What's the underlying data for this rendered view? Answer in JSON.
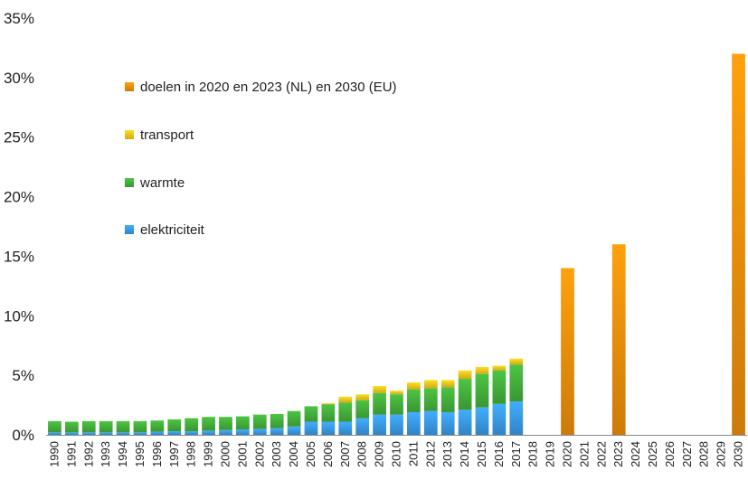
{
  "chart_data": {
    "type": "bar",
    "stacked": true,
    "title": "",
    "xlabel": "",
    "ylabel": "",
    "ylim": [
      0,
      35
    ],
    "yticks": [
      "0%",
      "5%",
      "10%",
      "15%",
      "20%",
      "25%",
      "30%",
      "35%"
    ],
    "grid": false,
    "legend_position": "top-left",
    "categories": [
      "1990",
      "1991",
      "1992",
      "1993",
      "1994",
      "1995",
      "1996",
      "1997",
      "1998",
      "1999",
      "2000",
      "2001",
      "2002",
      "2003",
      "2004",
      "2005",
      "2006",
      "2007",
      "2008",
      "2009",
      "2010",
      "2011",
      "2012",
      "2013",
      "2014",
      "2015",
      "2016",
      "2017",
      "2018",
      "2019",
      "2020",
      "2021",
      "2022",
      "2023",
      "2024",
      "2025",
      "2026",
      "2027",
      "2028",
      "2029",
      "2030"
    ],
    "series": [
      {
        "name": "elektriciteit",
        "color": "#3a9be6",
        "values": [
          0.2,
          0.2,
          0.2,
          0.2,
          0.2,
          0.2,
          0.25,
          0.3,
          0.3,
          0.35,
          0.4,
          0.45,
          0.5,
          0.55,
          0.7,
          1.1,
          1.1,
          1.1,
          1.4,
          1.7,
          1.7,
          1.9,
          2.0,
          1.9,
          2.1,
          2.3,
          2.6,
          2.8,
          0,
          0,
          0,
          0,
          0,
          0,
          0,
          0,
          0,
          0,
          0,
          0,
          0
        ]
      },
      {
        "name": "warmte",
        "color": "#44b03c",
        "values": [
          0.95,
          0.9,
          0.95,
          0.95,
          0.95,
          0.95,
          0.95,
          1.0,
          1.1,
          1.15,
          1.1,
          1.1,
          1.2,
          1.2,
          1.3,
          1.3,
          1.45,
          1.6,
          1.5,
          1.8,
          1.7,
          1.9,
          1.9,
          2.1,
          2.6,
          2.8,
          2.8,
          3.1,
          0,
          0,
          0,
          0,
          0,
          0,
          0,
          0,
          0,
          0,
          0,
          0,
          0
        ]
      },
      {
        "name": "transport",
        "color": "#f2c81c",
        "values": [
          0,
          0,
          0,
          0,
          0,
          0,
          0,
          0,
          0,
          0,
          0,
          0,
          0,
          0,
          0,
          0,
          0.1,
          0.5,
          0.5,
          0.6,
          0.3,
          0.6,
          0.7,
          0.6,
          0.7,
          0.6,
          0.4,
          0.5,
          0,
          0,
          0,
          0,
          0,
          0,
          0,
          0,
          0,
          0,
          0,
          0,
          0
        ]
      },
      {
        "name": "doelen in 2020 en 2023 (NL) en 2030 (EU)",
        "color": "#f0900c",
        "values": [
          0,
          0,
          0,
          0,
          0,
          0,
          0,
          0,
          0,
          0,
          0,
          0,
          0,
          0,
          0,
          0,
          0,
          0,
          0,
          0,
          0,
          0,
          0,
          0,
          0,
          0,
          0,
          0,
          0,
          0,
          14,
          0,
          0,
          16,
          0,
          0,
          0,
          0,
          0,
          0,
          32
        ]
      }
    ],
    "legend": [
      {
        "label": "doelen in 2020 en 2023 (NL) en 2030 (EU)",
        "color": "#f0900c"
      },
      {
        "label": "transport",
        "color": "#f2c81c"
      },
      {
        "label": "warmte",
        "color": "#44b03c"
      },
      {
        "label": "elektriciteit",
        "color": "#3a9be6"
      }
    ]
  }
}
